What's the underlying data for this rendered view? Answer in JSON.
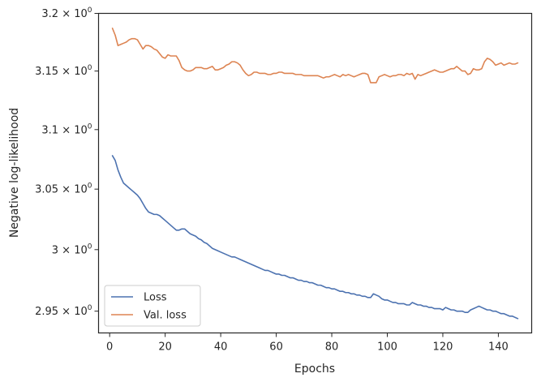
{
  "chart_data": {
    "type": "line",
    "title": "",
    "xlabel": "Epochs",
    "ylabel": "Negative log-likelihood",
    "yscale": "log",
    "xlim": [
      -4,
      152
    ],
    "ylim": [
      2.9325,
      3.2
    ],
    "xticks": [
      0,
      20,
      40,
      60,
      80,
      100,
      120,
      140
    ],
    "xtick_labels": [
      "0",
      "20",
      "40",
      "60",
      "80",
      "100",
      "120",
      "140"
    ],
    "yticks": [
      {
        "value": 2.95,
        "mantissa": "2.95"
      },
      {
        "value": 3.0,
        "mantissa": "3"
      },
      {
        "value": 3.05,
        "mantissa": "3.05"
      },
      {
        "value": 3.1,
        "mantissa": "3.1"
      },
      {
        "value": 3.15,
        "mantissa": "3.15"
      },
      {
        "value": 3.2,
        "mantissa": "3.2"
      }
    ],
    "ytick_base": "10",
    "ytick_exponent": "0",
    "grid": false,
    "legend_position": "lower-left",
    "series": [
      {
        "name": "Loss",
        "color": "#4c72b0",
        "x": [
          1,
          2,
          3,
          4,
          5,
          6,
          7,
          8,
          9,
          10,
          11,
          12,
          13,
          14,
          15,
          16,
          17,
          18,
          19,
          20,
          21,
          22,
          23,
          24,
          25,
          26,
          27,
          28,
          29,
          30,
          31,
          32,
          33,
          34,
          35,
          36,
          37,
          38,
          39,
          40,
          41,
          42,
          43,
          44,
          45,
          46,
          47,
          48,
          49,
          50,
          51,
          52,
          53,
          54,
          55,
          56,
          57,
          58,
          59,
          60,
          61,
          62,
          63,
          64,
          65,
          66,
          67,
          68,
          69,
          70,
          71,
          72,
          73,
          74,
          75,
          76,
          77,
          78,
          79,
          80,
          81,
          82,
          83,
          84,
          85,
          86,
          87,
          88,
          89,
          90,
          91,
          92,
          93,
          94,
          95,
          96,
          97,
          98,
          99,
          100,
          101,
          102,
          103,
          104,
          105,
          106,
          107,
          108,
          109,
          110,
          111,
          112,
          113,
          114,
          115,
          116,
          117,
          118,
          119,
          120,
          121,
          122,
          123,
          124,
          125,
          126,
          127,
          128,
          129,
          130,
          131,
          132,
          133,
          134,
          135,
          136,
          137,
          138,
          139,
          140,
          141,
          142,
          143,
          144,
          145,
          146,
          147
        ],
        "values": [
          3.078,
          3.074,
          3.066,
          3.06,
          3.055,
          3.053,
          3.051,
          3.049,
          3.047,
          3.045,
          3.042,
          3.038,
          3.034,
          3.031,
          3.03,
          3.029,
          3.029,
          3.028,
          3.026,
          3.024,
          3.022,
          3.02,
          3.018,
          3.016,
          3.016,
          3.017,
          3.017,
          3.015,
          3.013,
          3.012,
          3.011,
          3.009,
          3.008,
          3.006,
          3.005,
          3.003,
          3.001,
          3.0,
          2.999,
          2.998,
          2.997,
          2.996,
          2.995,
          2.994,
          2.994,
          2.993,
          2.992,
          2.991,
          2.99,
          2.989,
          2.988,
          2.987,
          2.986,
          2.985,
          2.984,
          2.983,
          2.983,
          2.982,
          2.981,
          2.98,
          2.98,
          2.979,
          2.979,
          2.978,
          2.977,
          2.977,
          2.976,
          2.975,
          2.975,
          2.974,
          2.974,
          2.973,
          2.973,
          2.972,
          2.971,
          2.971,
          2.97,
          2.969,
          2.969,
          2.968,
          2.968,
          2.967,
          2.966,
          2.966,
          2.965,
          2.965,
          2.964,
          2.964,
          2.963,
          2.963,
          2.962,
          2.962,
          2.961,
          2.961,
          2.964,
          2.963,
          2.962,
          2.96,
          2.959,
          2.959,
          2.958,
          2.957,
          2.957,
          2.956,
          2.956,
          2.956,
          2.955,
          2.955,
          2.957,
          2.956,
          2.955,
          2.955,
          2.954,
          2.954,
          2.953,
          2.953,
          2.952,
          2.952,
          2.952,
          2.951,
          2.953,
          2.952,
          2.951,
          2.951,
          2.95,
          2.95,
          2.95,
          2.949,
          2.949,
          2.951,
          2.952,
          2.953,
          2.954,
          2.953,
          2.952,
          2.951,
          2.951,
          2.95,
          2.95,
          2.949,
          2.948,
          2.948,
          2.947,
          2.946,
          2.946,
          2.945,
          2.944
        ]
      },
      {
        "name": "Val. loss",
        "color": "#dd8452",
        "x": [
          1,
          2,
          3,
          4,
          5,
          6,
          7,
          8,
          9,
          10,
          11,
          12,
          13,
          14,
          15,
          16,
          17,
          18,
          19,
          20,
          21,
          22,
          23,
          24,
          25,
          26,
          27,
          28,
          29,
          30,
          31,
          32,
          33,
          34,
          35,
          36,
          37,
          38,
          39,
          40,
          41,
          42,
          43,
          44,
          45,
          46,
          47,
          48,
          49,
          50,
          51,
          52,
          53,
          54,
          55,
          56,
          57,
          58,
          59,
          60,
          61,
          62,
          63,
          64,
          65,
          66,
          67,
          68,
          69,
          70,
          71,
          72,
          73,
          74,
          75,
          76,
          77,
          78,
          79,
          80,
          81,
          82,
          83,
          84,
          85,
          86,
          87,
          88,
          89,
          90,
          91,
          92,
          93,
          94,
          95,
          96,
          97,
          98,
          99,
          100,
          101,
          102,
          103,
          104,
          105,
          106,
          107,
          108,
          109,
          110,
          111,
          112,
          113,
          114,
          115,
          116,
          117,
          118,
          119,
          120,
          121,
          122,
          123,
          124,
          125,
          126,
          127,
          128,
          129,
          130,
          131,
          132,
          133,
          134,
          135,
          136,
          137,
          138,
          139,
          140,
          141,
          142,
          143,
          144,
          145,
          146,
          147
        ],
        "values": [
          3.187,
          3.181,
          3.172,
          3.173,
          3.174,
          3.175,
          3.177,
          3.178,
          3.178,
          3.177,
          3.173,
          3.169,
          3.172,
          3.172,
          3.171,
          3.169,
          3.168,
          3.165,
          3.162,
          3.161,
          3.164,
          3.163,
          3.163,
          3.163,
          3.159,
          3.153,
          3.151,
          3.15,
          3.15,
          3.151,
          3.153,
          3.153,
          3.153,
          3.152,
          3.152,
          3.153,
          3.154,
          3.151,
          3.151,
          3.152,
          3.153,
          3.155,
          3.156,
          3.158,
          3.158,
          3.157,
          3.155,
          3.151,
          3.148,
          3.146,
          3.147,
          3.149,
          3.149,
          3.148,
          3.148,
          3.148,
          3.147,
          3.147,
          3.148,
          3.148,
          3.149,
          3.149,
          3.148,
          3.148,
          3.148,
          3.148,
          3.147,
          3.147,
          3.147,
          3.146,
          3.146,
          3.146,
          3.146,
          3.146,
          3.146,
          3.145,
          3.144,
          3.145,
          3.145,
          3.146,
          3.147,
          3.146,
          3.145,
          3.147,
          3.146,
          3.147,
          3.146,
          3.145,
          3.146,
          3.147,
          3.148,
          3.148,
          3.147,
          3.14,
          3.14,
          3.14,
          3.145,
          3.146,
          3.147,
          3.146,
          3.145,
          3.146,
          3.146,
          3.147,
          3.147,
          3.146,
          3.148,
          3.147,
          3.148,
          3.143,
          3.147,
          3.146,
          3.147,
          3.148,
          3.149,
          3.15,
          3.151,
          3.15,
          3.149,
          3.149,
          3.15,
          3.151,
          3.152,
          3.152,
          3.154,
          3.152,
          3.15,
          3.15,
          3.147,
          3.148,
          3.152,
          3.151,
          3.151,
          3.152,
          3.158,
          3.161,
          3.16,
          3.158,
          3.155,
          3.156,
          3.157,
          3.155,
          3.156,
          3.157,
          3.156,
          3.156,
          3.157
        ]
      }
    ]
  }
}
